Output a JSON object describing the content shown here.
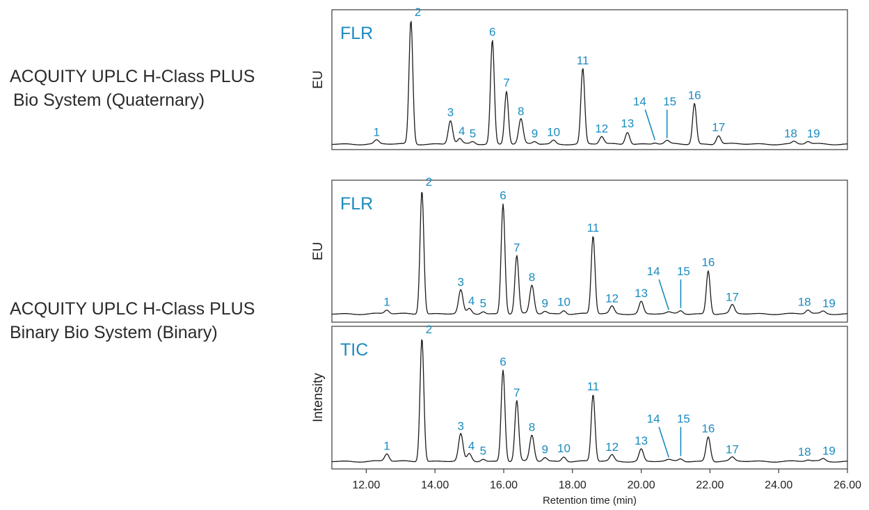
{
  "system_labels": [
    {
      "line1": "ACQUITY UPLC H-Class PLUS",
      "line2": "Bio System (Quaternary)"
    },
    {
      "line1": "ACQUITY UPLC H-Class PLUS",
      "line2": "Binary Bio System (Binary)"
    }
  ],
  "colors": {
    "annotation": "#1a8bbf",
    "trace": "#1a1a1a",
    "frame": "#3a3a3a"
  },
  "chart_data": [
    {
      "type": "line",
      "detector": "FLR",
      "ylabel": "EU",
      "xlim": [
        11.0,
        26.0
      ],
      "peaks": [
        {
          "label": "1",
          "rt": 12.3,
          "height": 0.03
        },
        {
          "label": "2",
          "rt": 13.3,
          "height": 1.0
        },
        {
          "label": "3",
          "rt": 14.45,
          "height": 0.19
        },
        {
          "label": "4",
          "rt": 14.72,
          "height": 0.04
        },
        {
          "label": "5",
          "rt": 15.1,
          "height": 0.02
        },
        {
          "label": "6",
          "rt": 15.67,
          "height": 0.84
        },
        {
          "label": "7",
          "rt": 16.08,
          "height": 0.43
        },
        {
          "label": "8",
          "rt": 16.5,
          "height": 0.2
        },
        {
          "label": "9",
          "rt": 16.9,
          "height": 0.02
        },
        {
          "label": "10",
          "rt": 17.45,
          "height": 0.03
        },
        {
          "label": "11",
          "rt": 18.3,
          "height": 0.61
        },
        {
          "label": "12",
          "rt": 18.85,
          "height": 0.06
        },
        {
          "label": "13",
          "rt": 19.6,
          "height": 0.1
        },
        {
          "label": "14",
          "rt": 20.4,
          "height": 0.01
        },
        {
          "label": "15",
          "rt": 20.75,
          "height": 0.025
        },
        {
          "label": "16",
          "rt": 21.55,
          "height": 0.33
        },
        {
          "label": "17",
          "rt": 22.25,
          "height": 0.07
        },
        {
          "label": "18",
          "rt": 24.45,
          "height": 0.02
        },
        {
          "label": "19",
          "rt": 24.85,
          "height": 0.02
        }
      ]
    },
    {
      "type": "line",
      "detector": "FLR",
      "ylabel": "EU",
      "xlim": [
        11.0,
        26.0
      ],
      "peaks": [
        {
          "label": "1",
          "rt": 12.6,
          "height": 0.03
        },
        {
          "label": "2",
          "rt": 13.62,
          "height": 1.0
        },
        {
          "label": "3",
          "rt": 14.75,
          "height": 0.19
        },
        {
          "label": "4",
          "rt": 15.0,
          "height": 0.04
        },
        {
          "label": "5",
          "rt": 15.4,
          "height": 0.02
        },
        {
          "label": "6",
          "rt": 15.98,
          "height": 0.89
        },
        {
          "label": "7",
          "rt": 16.38,
          "height": 0.47
        },
        {
          "label": "8",
          "rt": 16.82,
          "height": 0.23
        },
        {
          "label": "9",
          "rt": 17.2,
          "height": 0.02
        },
        {
          "label": "10",
          "rt": 17.75,
          "height": 0.03
        },
        {
          "label": "11",
          "rt": 18.6,
          "height": 0.63
        },
        {
          "label": "12",
          "rt": 19.15,
          "height": 0.06
        },
        {
          "label": "13",
          "rt": 20.0,
          "height": 0.1
        },
        {
          "label": "14",
          "rt": 20.8,
          "height": 0.01
        },
        {
          "label": "15",
          "rt": 21.15,
          "height": 0.025
        },
        {
          "label": "16",
          "rt": 21.95,
          "height": 0.35
        },
        {
          "label": "17",
          "rt": 22.65,
          "height": 0.07
        },
        {
          "label": "18",
          "rt": 24.85,
          "height": 0.03
        },
        {
          "label": "19",
          "rt": 25.3,
          "height": 0.02
        }
      ]
    },
    {
      "type": "line",
      "detector": "TIC",
      "ylabel": "Intensity",
      "xlabel": "Retention time (min)",
      "xlim": [
        11.0,
        26.0
      ],
      "xticks": [
        "12.00",
        "14.00",
        "16.00",
        "18.00",
        "20.00",
        "22.00",
        "24.00",
        "26.00"
      ],
      "peaks": [
        {
          "label": "1",
          "rt": 12.6,
          "height": 0.06
        },
        {
          "label": "2",
          "rt": 13.62,
          "height": 1.0
        },
        {
          "label": "3",
          "rt": 14.75,
          "height": 0.22
        },
        {
          "label": "4",
          "rt": 15.0,
          "height": 0.06
        },
        {
          "label": "5",
          "rt": 15.4,
          "height": 0.02
        },
        {
          "label": "6",
          "rt": 15.98,
          "height": 0.74
        },
        {
          "label": "7",
          "rt": 16.38,
          "height": 0.49
        },
        {
          "label": "8",
          "rt": 16.82,
          "height": 0.21
        },
        {
          "label": "9",
          "rt": 17.2,
          "height": 0.03
        },
        {
          "label": "10",
          "rt": 17.75,
          "height": 0.04
        },
        {
          "label": "11",
          "rt": 18.6,
          "height": 0.54
        },
        {
          "label": "12",
          "rt": 19.15,
          "height": 0.05
        },
        {
          "label": "13",
          "rt": 20.0,
          "height": 0.1
        },
        {
          "label": "14",
          "rt": 20.8,
          "height": 0.01
        },
        {
          "label": "15",
          "rt": 21.15,
          "height": 0.02
        },
        {
          "label": "16",
          "rt": 21.95,
          "height": 0.2
        },
        {
          "label": "17",
          "rt": 22.65,
          "height": 0.03
        },
        {
          "label": "18",
          "rt": 24.85,
          "height": 0.01
        },
        {
          "label": "19",
          "rt": 25.3,
          "height": 0.02
        }
      ]
    }
  ]
}
